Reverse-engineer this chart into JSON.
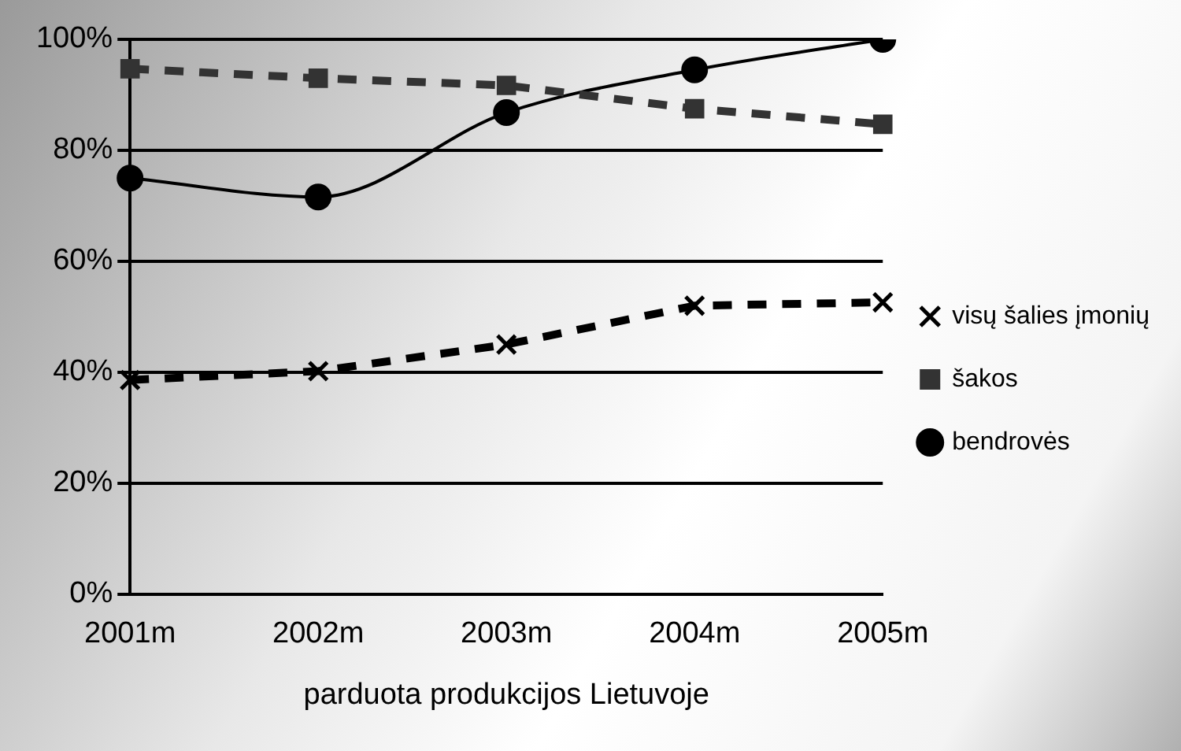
{
  "chart_data": {
    "type": "line",
    "categories": [
      "2001m",
      "2002m",
      "2003m",
      "2004m",
      "2005m"
    ],
    "xlabel": "parduota produkcijos Lietuvoje",
    "ylim": [
      0,
      100
    ],
    "yticks": [
      {
        "value": 0,
        "label": "0%"
      },
      {
        "value": 20,
        "label": "20%"
      },
      {
        "value": 40,
        "label": "40%"
      },
      {
        "value": 60,
        "label": "60%"
      },
      {
        "value": 80,
        "label": "80%"
      },
      {
        "value": 100,
        "label": "100%"
      }
    ],
    "grid": "y",
    "legend": "right",
    "series": [
      {
        "name": "visų šalies įmonių",
        "color": "#000000",
        "marker": "cross",
        "line_style": "dashed",
        "values": [
          38.6,
          40.2,
          45,
          52,
          52.6
        ]
      },
      {
        "name": "šakos",
        "color": "#333333",
        "marker": "square",
        "line_style": "dashed",
        "values": [
          94.7,
          93,
          91.7,
          87.5,
          84.7
        ]
      },
      {
        "name": "bendrovės",
        "color": "#000000",
        "marker": "circle",
        "line_style": "solid",
        "values": [
          75,
          71.6,
          86.8,
          94.5,
          100
        ]
      }
    ]
  }
}
